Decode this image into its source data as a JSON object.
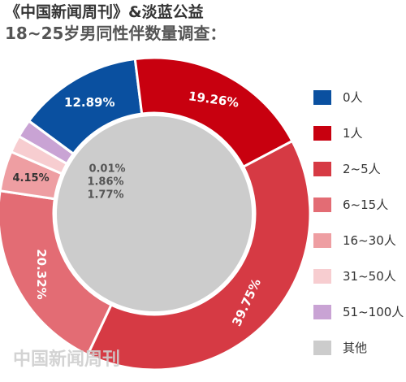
{
  "title": {
    "line1": "《中国新闻周刊》&淡蓝公益",
    "line2": "18~25岁男同性伴数量调查："
  },
  "watermark": "中国新闻周刊",
  "chart_data": {
    "type": "pie",
    "categories": [
      "0人",
      "1人",
      "2~5人",
      "6~15人",
      "16~30人",
      "31~50人",
      "51~100人",
      "其他"
    ],
    "values": [
      12.89,
      19.26,
      39.75,
      20.32,
      4.15,
      1.77,
      1.86,
      0.01
    ],
    "labels": [
      "12.89%",
      "19.26%",
      "39.75%",
      "20.32%",
      "4.15%",
      "1.77%",
      "1.86%",
      "0.01%"
    ],
    "colors": [
      "#0a50a0",
      "#c8000f",
      "#d63a44",
      "#e36c74",
      "#ee9ea2",
      "#f7cdd0",
      "#c9a3d4",
      "#cccccc"
    ],
    "legend_position": "right"
  }
}
